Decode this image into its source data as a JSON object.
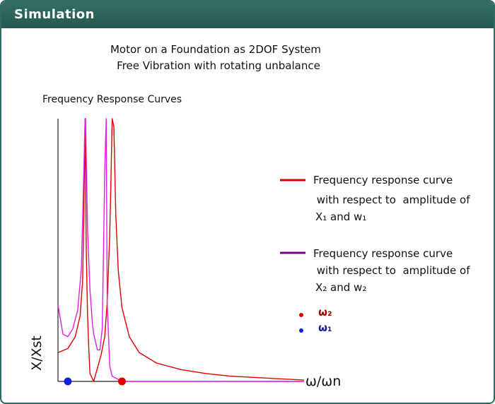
{
  "header": {
    "title": "Simulation"
  },
  "figure": {
    "title_line1": "Motor on a Foundation  as 2DOF System",
    "title_line2": "Free Vibration with rotating unbalance",
    "subtitle": "Frequency Response Curves"
  },
  "legend": {
    "red_line1": "Frequency response curve",
    "red_line2": " with respect to  amplitude of",
    "red_line3": "X₁ and w₁",
    "purple_line1": "Frequency response curve",
    "purple_line2": " with respect to  amplitude of",
    "purple_line3": "X₂ and w₂",
    "omega2_label": "ω₂",
    "omega1_label": "ω₁"
  },
  "colors": {
    "red": "#e00000",
    "purple": "#7a008c",
    "magenta": "#e020e0",
    "blue": "#1020e0",
    "omega2_text": "#9a0000",
    "omega1_text": "#1020a0"
  },
  "chart_data": {
    "type": "line",
    "xlabel": "ω/ωn",
    "ylabel": "X/Xst",
    "xlim": [
      0,
      1
    ],
    "ylim": [
      0,
      1
    ],
    "grid": false,
    "legend_position": "right",
    "series": [
      {
        "name": "Frequency response curve with respect to amplitude of X₁ and w₁",
        "color": "#e00000",
        "x": [
          0.0,
          0.04,
          0.07,
          0.09,
          0.1,
          0.105,
          0.11,
          0.115,
          0.12,
          0.125,
          0.13,
          0.145,
          0.16,
          0.175,
          0.19,
          0.2,
          0.21,
          0.215,
          0.22,
          0.227,
          0.235,
          0.245,
          0.26,
          0.29,
          0.33,
          0.4,
          0.5,
          0.6,
          0.7,
          0.8,
          0.9,
          1.0
        ],
        "y": [
          0.11,
          0.125,
          0.17,
          0.25,
          0.38,
          0.62,
          1.0,
          0.5,
          0.25,
          0.13,
          0.03,
          0.0,
          0.05,
          0.1,
          0.17,
          0.3,
          0.55,
          0.75,
          1.0,
          0.97,
          0.63,
          0.42,
          0.28,
          0.17,
          0.11,
          0.07,
          0.045,
          0.03,
          0.02,
          0.015,
          0.01,
          0.005
        ]
      },
      {
        "name": "Frequency response curve with respect to amplitude of X₂ and w₂",
        "color": "#e020e0",
        "x": [
          0.0,
          0.02,
          0.04,
          0.06,
          0.08,
          0.095,
          0.105,
          0.11,
          0.112,
          0.12,
          0.13,
          0.14,
          0.145,
          0.16,
          0.17,
          0.18,
          0.185,
          0.19,
          0.196,
          0.2,
          0.21,
          0.22,
          0.26,
          0.3,
          0.4,
          0.6,
          1.0
        ],
        "y": [
          0.29,
          0.18,
          0.17,
          0.2,
          0.27,
          0.43,
          0.8,
          1.0,
          1.0,
          0.58,
          0.35,
          0.22,
          0.18,
          0.12,
          0.12,
          0.2,
          0.5,
          0.8,
          1.0,
          0.3,
          0.06,
          0.02,
          0.0,
          0.0,
          0.0,
          0.0,
          0.0
        ]
      }
    ],
    "markers": [
      {
        "label": "ω₁",
        "x": 0.04,
        "y": 0.0,
        "color": "#1020e0"
      },
      {
        "label": "ω₂",
        "x": 0.26,
        "y": 0.0,
        "color": "#e00000"
      }
    ]
  }
}
